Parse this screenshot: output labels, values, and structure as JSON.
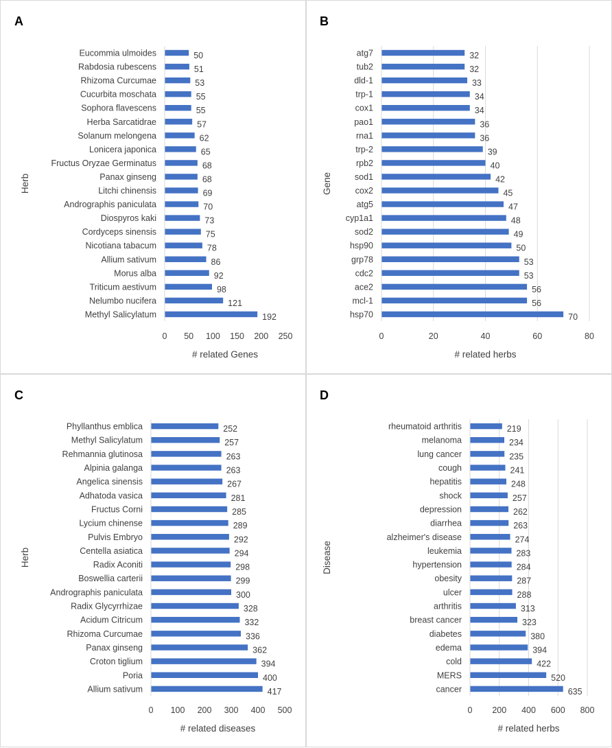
{
  "chart_data": [
    {
      "type": "bar",
      "orientation": "horizontal",
      "panel": "A",
      "ylabel": "Herb",
      "xlabel": "# related  Genes",
      "xlim": [
        0,
        250
      ],
      "xticks": [
        0,
        50,
        100,
        150,
        200,
        250
      ],
      "gridlines": false,
      "categories": [
        "Eucommia ulmoides",
        "Rabdosia rubescens",
        "Rhizoma Curcumae",
        "Cucurbita moschata",
        "Sophora flavescens",
        "Herba Sarcatidrae",
        "Solanum melongena",
        "Lonicera japonica",
        "Fructus Oryzae Germinatus",
        "Panax ginseng",
        "Litchi chinensis",
        "Andrographis paniculata",
        "Diospyros kaki",
        "Cordyceps sinensis",
        "Nicotiana tabacum",
        "Allium sativum",
        "Morus alba",
        "Triticum aestivum",
        "Nelumbo nucifera",
        "Methyl Salicylatum"
      ],
      "values": [
        50,
        51,
        53,
        55,
        55,
        57,
        62,
        65,
        68,
        68,
        69,
        70,
        73,
        75,
        78,
        86,
        92,
        98,
        121,
        192
      ],
      "color": "#4472c4"
    },
    {
      "type": "bar",
      "orientation": "horizontal",
      "panel": "B",
      "ylabel": "Gene",
      "xlabel": "# related  herbs",
      "xlim": [
        0,
        80
      ],
      "xticks": [
        0,
        20,
        40,
        60,
        80
      ],
      "gridlines": true,
      "categories": [
        "atg7",
        "tub2",
        "dld-1",
        "trp-1",
        "cox1",
        "pao1",
        "rna1",
        "trp-2",
        "rpb2",
        "sod1",
        "cox2",
        "atg5",
        "cyp1a1",
        "sod2",
        "hsp90",
        "grp78",
        "cdc2",
        "ace2",
        "mcl-1",
        "hsp70"
      ],
      "values": [
        32,
        32,
        33,
        34,
        34,
        36,
        36,
        39,
        40,
        42,
        45,
        47,
        48,
        49,
        50,
        53,
        53,
        56,
        56,
        70
      ],
      "color": "#4472c4"
    },
    {
      "type": "bar",
      "orientation": "horizontal",
      "panel": "C",
      "ylabel": "Herb",
      "xlabel": "# related  diseases",
      "xlim": [
        0,
        500
      ],
      "xticks": [
        0,
        100,
        200,
        300,
        400,
        500
      ],
      "gridlines": false,
      "categories": [
        "Phyllanthus emblica",
        "Methyl Salicylatum",
        "Rehmannia glutinosa",
        "Alpinia galanga",
        "Angelica sinensis",
        "Adhatoda vasica",
        "Fructus Corni",
        "Lycium chinense",
        "Pulvis Embryo",
        "Centella asiatica",
        "Radix Aconiti",
        "Boswellia carterii",
        "Andrographis paniculata",
        "Radix Glycyrrhizae",
        "Acidum Citricum",
        "Rhizoma Curcumae",
        "Panax ginseng",
        "Croton tiglium",
        "Poria",
        "Allium sativum"
      ],
      "values": [
        252,
        257,
        263,
        263,
        267,
        281,
        285,
        289,
        292,
        294,
        298,
        299,
        300,
        328,
        332,
        336,
        362,
        394,
        400,
        417
      ],
      "color": "#4472c4"
    },
    {
      "type": "bar",
      "orientation": "horizontal",
      "panel": "D",
      "ylabel": "Disease",
      "xlabel": "# related  herbs",
      "xlim": [
        0,
        800
      ],
      "xticks": [
        0,
        200,
        400,
        600,
        800
      ],
      "gridlines": true,
      "categories": [
        "rheumatoid arthritis",
        "melanoma",
        "lung cancer",
        "cough",
        "hepatitis",
        "shock",
        "depression",
        "diarrhea",
        "alzheimer's disease",
        "leukemia",
        "hypertension",
        "obesity",
        "ulcer",
        "arthritis",
        "breast cancer",
        "diabetes",
        "edema",
        "cold",
        "MERS",
        "cancer"
      ],
      "values": [
        219,
        234,
        235,
        241,
        248,
        257,
        262,
        263,
        274,
        283,
        284,
        287,
        288,
        313,
        323,
        380,
        394,
        422,
        520,
        635
      ],
      "color": "#4472c4"
    }
  ]
}
